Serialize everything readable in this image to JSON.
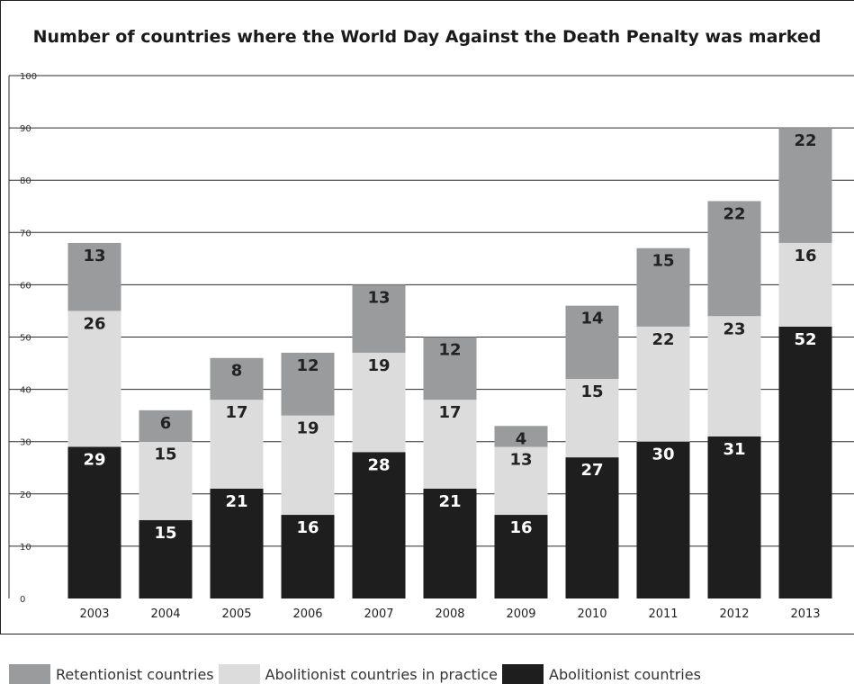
{
  "chart_data": {
    "type": "bar",
    "stacked": true,
    "title": "Number of countries where the World Day Against the Death Penalty was marked",
    "xlabel": "",
    "ylabel": "",
    "ylim": [
      0,
      100
    ],
    "yticks": [
      0,
      10,
      20,
      30,
      40,
      50,
      60,
      70,
      80,
      90,
      100
    ],
    "grid": true,
    "legend_position": "bottom",
    "categories": [
      "2003",
      "2004",
      "2005",
      "2006",
      "2007",
      "2008",
      "2009",
      "2010",
      "2011",
      "2012",
      "2013"
    ],
    "series": [
      {
        "name": "Abolitionist countries",
        "color": "#1e1e1e",
        "label_color": "#ffffff",
        "values": [
          29,
          15,
          21,
          16,
          28,
          21,
          16,
          27,
          30,
          31,
          52
        ]
      },
      {
        "name": "Abolitionist countries in practice",
        "color": "#dcdcdd",
        "label_color": "#222222",
        "values": [
          26,
          15,
          17,
          19,
          19,
          17,
          13,
          15,
          22,
          23,
          16
        ]
      },
      {
        "name": "Retentionist countries",
        "color": "#9a9b9c",
        "label_color": "#222222",
        "values": [
          13,
          6,
          8,
          12,
          13,
          12,
          4,
          14,
          15,
          22,
          22
        ]
      }
    ]
  },
  "legend": [
    {
      "label": "Retentionist countries",
      "color": "#9a9b9c"
    },
    {
      "label": "Abolitionist countries in practice",
      "color": "#dcdcdd"
    },
    {
      "label": "Abolitionist countries",
      "color": "#1e1e1e"
    }
  ]
}
